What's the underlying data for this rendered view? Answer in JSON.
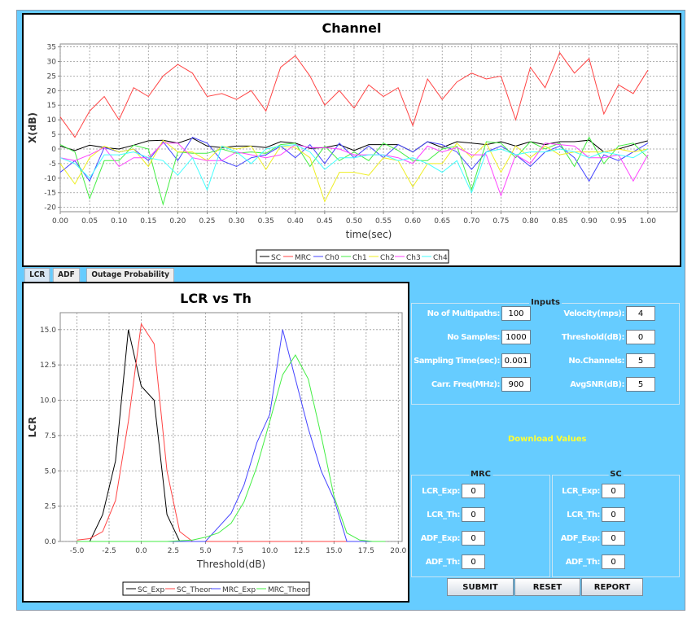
{
  "tabs": [
    {
      "label": "LCR"
    },
    {
      "label": "ADF"
    },
    {
      "label": "Outage Probability"
    }
  ],
  "inputs": {
    "title": "Inputs",
    "fields": [
      {
        "label": "No of Multipaths:",
        "value": "100"
      },
      {
        "label": "No Samples:",
        "value": "1000"
      },
      {
        "label": "Sampling Time(sec):",
        "value": "0.001"
      },
      {
        "label": "Carr. Freq(MHz):",
        "value": "900"
      },
      {
        "label": "Velocity(mps):",
        "value": "4"
      },
      {
        "label": "Threshold(dB):",
        "value": "0"
      },
      {
        "label": "No.Channels:",
        "value": "5"
      },
      {
        "label": "AvgSNR(dB):",
        "value": "5"
      }
    ]
  },
  "download_label": "Download Values",
  "mrc": {
    "title": "MRC",
    "fields": [
      {
        "label": "LCR_Exp:",
        "value": "0"
      },
      {
        "label": "LCR_Th:",
        "value": "0"
      },
      {
        "label": "ADF_Exp:",
        "value": "0"
      },
      {
        "label": "ADF_Th:",
        "value": "0"
      }
    ]
  },
  "sc": {
    "title": "SC",
    "fields": [
      {
        "label": "LCR_Exp:",
        "value": "0"
      },
      {
        "label": "LCR_Th:",
        "value": "0"
      },
      {
        "label": "ADF_Exp:",
        "value": "0"
      },
      {
        "label": "ADF_Th:",
        "value": "0"
      }
    ]
  },
  "buttons": {
    "submit": "SUBMIT",
    "reset": "RESET",
    "report": "REPORT"
  },
  "chart_data": [
    {
      "type": "line",
      "title": "Channel",
      "xlabel": "time(sec)",
      "ylabel": "X(dB)",
      "xlim": [
        0,
        1.05
      ],
      "ylim": [
        -21.5,
        36
      ],
      "xticks": [
        "0.00",
        "0.05",
        "0.10",
        "0.15",
        "0.20",
        "0.25",
        "0.30",
        "0.35",
        "0.40",
        "0.45",
        "0.50",
        "0.55",
        "0.60",
        "0.65",
        "0.70",
        "0.75",
        "0.80",
        "0.85",
        "0.90",
        "0.95",
        "1.00"
      ],
      "yticks": [
        "-20",
        "-15",
        "-10",
        "-5",
        "0",
        "5",
        "10",
        "15",
        "20",
        "25",
        "30",
        "35"
      ],
      "grid": true,
      "legend": "bottom",
      "x_step": 0.025,
      "series": [
        {
          "name": "SC",
          "color": "#000000",
          "values": [
            1,
            -0.5,
            1.3,
            0.5,
            0,
            1.3,
            2.8,
            3,
            2,
            3.7,
            1,
            0.5,
            1,
            1,
            0.5,
            2.5,
            2,
            0.2,
            0.5,
            1.5,
            -0.5,
            1.5,
            1.5,
            1.5,
            -1,
            2.5,
            0.5,
            2.5,
            2,
            1.5,
            2.5,
            1,
            2.5,
            1.5,
            2.5,
            2.5,
            3,
            -1,
            0,
            1.5,
            2.8
          ]
        },
        {
          "name": "MRC",
          "color": "#ff4444",
          "values": [
            11,
            4,
            13,
            18,
            10,
            21,
            18,
            25,
            29,
            26,
            18,
            19,
            17,
            20,
            13,
            28,
            32,
            25,
            15,
            20,
            14,
            22,
            18,
            21,
            8,
            24,
            17,
            23,
            26,
            24,
            25,
            10,
            28,
            21,
            33,
            26,
            31,
            12,
            22,
            19,
            27
          ]
        },
        {
          "name": "Ch0",
          "color": "#4444ff",
          "values": [
            -8,
            -4,
            -11,
            0.5,
            -1,
            0,
            -4,
            2.5,
            -4,
            4,
            2,
            -4,
            -6,
            -3,
            -2,
            1,
            -3,
            1.5,
            -5,
            2,
            -3,
            1,
            -3,
            1.5,
            -1,
            2.5,
            1.5,
            -1,
            -7,
            -1,
            1,
            -2,
            -6,
            -1,
            1,
            -3,
            -11,
            -2,
            -4,
            -1,
            2
          ]
        },
        {
          "name": "Ch1",
          "color": "#44ee44",
          "values": [
            1.5,
            -1,
            -17,
            -4,
            -4,
            1.3,
            0,
            -19,
            -1,
            -1.5,
            -1.5,
            0,
            -1.5,
            -1,
            -1.5,
            1.5,
            2,
            -6,
            1,
            -4,
            -1,
            -4,
            2,
            -0.5,
            -4,
            -4,
            0,
            1,
            -14,
            2.5,
            2,
            -3,
            2.5,
            0,
            2,
            -6,
            4,
            -5,
            1,
            2,
            -3
          ]
        },
        {
          "name": "Ch2",
          "color": "#eeee22",
          "values": [
            -5,
            -12,
            -3,
            1,
            -1,
            0,
            -6,
            3,
            -1,
            -1,
            -4,
            1,
            0,
            1,
            -7,
            1,
            0.5,
            -3,
            -18,
            -8,
            -8,
            -9,
            -3,
            -4,
            -13,
            -5,
            -5,
            2,
            -3,
            2,
            -8,
            1,
            -3,
            1,
            -2,
            -1,
            -1,
            -1,
            0,
            -1,
            0
          ]
        },
        {
          "name": "Ch3",
          "color": "#ff44ff",
          "values": [
            -3,
            -4,
            -2,
            0.5,
            -6,
            -3,
            -3,
            2,
            2,
            -3,
            -4,
            -4,
            -1,
            -2,
            -3,
            -2,
            1.5,
            0.5,
            0.5,
            0,
            -2,
            -2,
            -2,
            -3,
            -5,
            1,
            -1,
            0.5,
            -2,
            -2,
            -16,
            -2,
            -5,
            2,
            1.5,
            1,
            -3,
            -3,
            -2,
            -11,
            -2
          ]
        },
        {
          "name": "Ch4",
          "color": "#44ffff",
          "values": [
            -3,
            -5,
            -10,
            -2,
            -2,
            -1,
            -3,
            -4,
            -9,
            -3,
            -14,
            1,
            -1,
            -5,
            0,
            1,
            1.5,
            -1,
            -7,
            -3,
            -3,
            -2,
            -2,
            -4,
            -3,
            -5,
            -8,
            -4,
            -15,
            -1,
            0,
            -2,
            -1,
            -1,
            0,
            -1,
            -3,
            -1,
            -2,
            -3,
            0
          ]
        }
      ]
    },
    {
      "type": "line",
      "title": "LCR vs Th",
      "xlabel": "Threshold(dB)",
      "ylabel": "LCR",
      "xlim": [
        -6.3,
        20.3
      ],
      "ylim": [
        0,
        16.2
      ],
      "xticks": [
        "-5.0",
        "-2.5",
        "0.0",
        "2.5",
        "5.0",
        "7.5",
        "10.0",
        "12.5",
        "15.0",
        "17.5",
        "20.0"
      ],
      "yticks": [
        "0.0",
        "2.5",
        "5.0",
        "7.5",
        "10.0",
        "12.5",
        "15.0"
      ],
      "grid": true,
      "legend": "bottom",
      "x": [
        -5,
        -4,
        -3,
        -2,
        -1,
        0,
        1,
        2,
        3,
        4,
        5,
        6,
        7,
        8,
        9,
        10,
        11,
        12,
        13,
        14,
        15,
        16,
        17,
        18,
        19
      ],
      "series": [
        {
          "name": "SC_Exp",
          "color": "#000000",
          "values": [
            0,
            0,
            1.9,
            5.7,
            15,
            11,
            10,
            1.9,
            0,
            0,
            0,
            0,
            0,
            0,
            0,
            0,
            0,
            0,
            0,
            0,
            0,
            0,
            0,
            0,
            0
          ]
        },
        {
          "name": "SC_Theor",
          "color": "#ff4444",
          "values": [
            0.1,
            0.2,
            0.7,
            2.9,
            8.5,
            15.4,
            14,
            5,
            0.7,
            0,
            0,
            0,
            0,
            0,
            0,
            0,
            0,
            0,
            0,
            0,
            0,
            0,
            0,
            0,
            0
          ]
        },
        {
          "name": "MRC_Exp",
          "color": "#4444ff",
          "values": [
            0,
            0,
            0,
            0,
            0,
            0,
            0,
            0,
            0,
            0,
            0,
            1,
            2,
            4,
            7,
            9,
            15,
            11.5,
            8,
            5,
            3,
            0,
            0,
            0,
            0
          ]
        },
        {
          "name": "MRC_Theor",
          "color": "#44ee44",
          "values": [
            0,
            0,
            0,
            0,
            0,
            0,
            0,
            0,
            0.05,
            0.1,
            0.3,
            0.6,
            1.3,
            2.8,
            5.3,
            8.5,
            11.8,
            13.2,
            11.5,
            7.5,
            3.2,
            0.6,
            0.1,
            0,
            0
          ]
        }
      ]
    }
  ]
}
